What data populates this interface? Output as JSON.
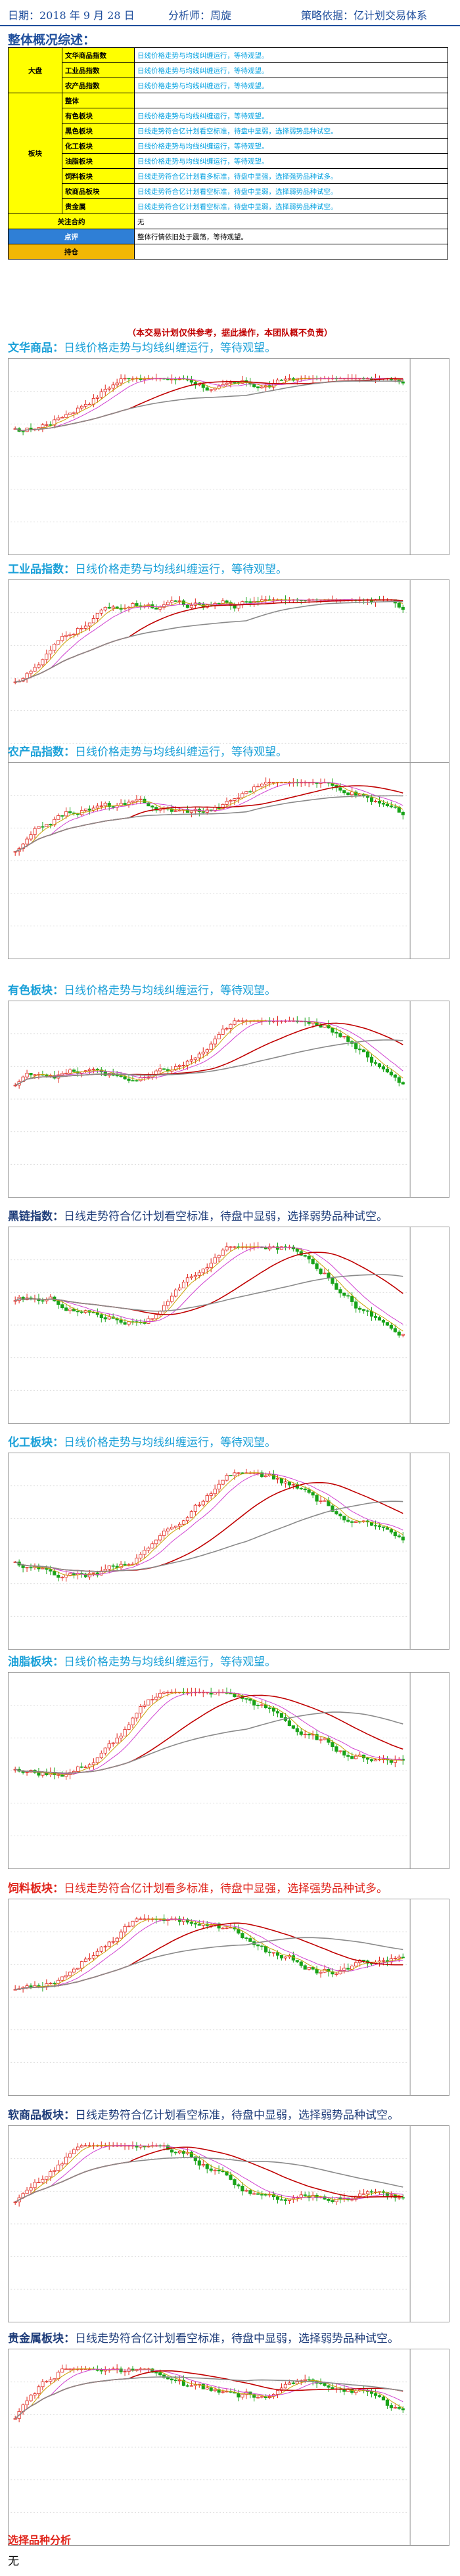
{
  "header": {
    "date": "日期：2018 年 9 月 28 日",
    "analyst": "分析师：周旋",
    "basis": "策略依据：亿计划交易体系"
  },
  "overview_title": "整体概况综述：",
  "overview": {
    "groups": [
      {
        "name": "大盘",
        "rows": [
          {
            "category": "文华商品指数",
            "text": "日线价格走势与均线纠缠运行，等待观望。"
          },
          {
            "category": "工业品指数",
            "text": "日线价格走势与均线纠缠运行，等待观望。"
          },
          {
            "category": "农产品指数",
            "text": "日线价格走势与均线纠缠运行，等待观望。"
          }
        ]
      },
      {
        "name": "板块",
        "rows": [
          {
            "category": "整体",
            "text": ""
          },
          {
            "category": "有色板块",
            "text": "日线价格走势与均线纠缠运行，等待观望。"
          },
          {
            "category": "黑色板块",
            "text": "日线走势符合亿计划看空标准，待盘中显弱，选择弱势品种试空。"
          },
          {
            "category": "化工板块",
            "text": "日线价格走势与均线纠缠运行，等待观望。"
          },
          {
            "category": "油脂板块",
            "text": "日线价格走势与均线纠缠运行，等待观望。"
          },
          {
            "category": "饲料板块",
            "text": "日线走势符合亿计划看多标准，待盘中显强，选择强势品种试多。"
          },
          {
            "category": "软商品板块",
            "text": "日线走势符合亿计划看空标准，待盘中显弱，选择弱势品种试空。"
          },
          {
            "category": "贵金属",
            "text": "日线走势符合亿计划看空标准，待盘中显弱，选择弱势品种试空。"
          }
        ]
      }
    ],
    "footer": [
      {
        "label": "关注合约",
        "text": "无",
        "style": "yellow"
      },
      {
        "label": "点评",
        "text": "整体行情依旧处于震荡，等待观望。",
        "style": "blue"
      },
      {
        "label": "持仓",
        "text": "",
        "style": "gold"
      }
    ]
  },
  "disclaimer": "（本交易计划仅供参考，据此操作，本团队概不负责）",
  "sections": [
    {
      "name": "文华商品：",
      "text": "日线价格走势与均线纠缠运行，等待观望。",
      "color": "#1aa0d8",
      "style": "blue"
    },
    {
      "name": "工业品指数：",
      "text": "日线价格走势与均线纠缠运行，等待观望。",
      "color": "#1aa0d8",
      "style": "blue"
    },
    {
      "name": "农产品指数：",
      "text": "日线价格走势与均线纠缠运行，等待观望。",
      "color": "#1aa0d8",
      "style": "blue"
    },
    {
      "name": "有色板块：",
      "text": "日线价格走势与均线纠缠运行，等待观望。",
      "color": "#1aa0d8",
      "style": "blue"
    },
    {
      "name": "黑链指数：",
      "text": "日线走势符合亿计划看空标准，待盘中显弱，选择弱势品种试空。",
      "color": "#1f3d7a",
      "style": "navy"
    },
    {
      "name": "化工板块：",
      "text": "日线价格走势与均线纠缠运行，等待观望。",
      "color": "#1aa0d8",
      "style": "blue"
    },
    {
      "name": "油脂板块：",
      "text": "日线价格走势与均线纠缠运行，等待观望。",
      "color": "#1aa0d8",
      "style": "blue"
    },
    {
      "name": "饲料板块：",
      "text": "日线走势符合亿计划看多标准，待盘中显强，选择强势品种试多。",
      "color": "#e0241b",
      "style": "red"
    },
    {
      "name": "软商品板块：",
      "text": "日线走势符合亿计划看空标准，待盘中显弱，选择弱势品种试空。",
      "color": "#1f3d7a",
      "style": "navy"
    },
    {
      "name": "贵金属板块：",
      "text": "日线走势符合亿计划看空标准，待盘中显弱，选择弱势品种试空。",
      "color": "#1f3d7a",
      "style": "navy"
    }
  ],
  "pick": {
    "title": "选择品种分析",
    "text": "无"
  },
  "colors": {
    "up_candle": "#e0241b",
    "down_candle": "#18a318",
    "ma_short": "#c8a000",
    "ma_mid": "#d040d0",
    "ma_long": "#c00000",
    "ma_xlong": "#8a8a8a"
  }
}
